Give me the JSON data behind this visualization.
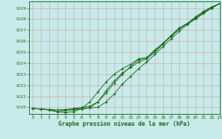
{
  "title": "Graphe pression niveau de la mer (hPa)",
  "bg_color": "#c8eaea",
  "grid_color": "#c8a8a8",
  "line_color": "#1a6b1a",
  "ylim": [
    1019.4,
    1029.6
  ],
  "xlim": [
    -0.5,
    23
  ],
  "yticks": [
    1020,
    1021,
    1022,
    1023,
    1024,
    1025,
    1026,
    1027,
    1028,
    1029
  ],
  "xtick_labels": [
    "0",
    "1",
    "2",
    "3",
    "4",
    "5",
    "6",
    "7",
    "8",
    "9",
    "10",
    "11",
    "12",
    "13",
    "14",
    "15",
    "16",
    "17",
    "18",
    "19",
    "20",
    "21",
    "22",
    "23"
  ],
  "series": [
    [
      1019.9,
      1019.85,
      1019.8,
      1019.75,
      1019.8,
      1019.85,
      1019.9,
      1019.95,
      1020.0,
      1020.5,
      1021.2,
      1022.1,
      1022.8,
      1023.5,
      1024.1,
      1024.8,
      1025.5,
      1026.2,
      1026.9,
      1027.5,
      1028.0,
      1028.5,
      1029.0,
      1029.4
    ],
    [
      1019.9,
      1019.85,
      1019.8,
      1019.75,
      1019.8,
      1019.9,
      1020.0,
      1020.1,
      1020.5,
      1021.3,
      1022.2,
      1023.0,
      1023.7,
      1024.3,
      1024.5,
      1025.2,
      1025.8,
      1026.4,
      1027.1,
      1027.6,
      1028.2,
      1028.7,
      1029.1,
      1029.4
    ],
    [
      1019.9,
      1019.85,
      1019.75,
      1019.6,
      1019.7,
      1019.75,
      1019.85,
      1019.95,
      1020.5,
      1021.5,
      1022.4,
      1023.1,
      1023.6,
      1024.1,
      1024.4,
      1025.0,
      1025.7,
      1026.5,
      1027.2,
      1027.6,
      1028.1,
      1028.6,
      1029.0,
      1029.4
    ],
    [
      1019.9,
      1019.85,
      1019.8,
      1019.6,
      1019.55,
      1019.6,
      1019.9,
      1020.5,
      1021.4,
      1022.3,
      1023.0,
      1023.5,
      1023.9,
      1024.4,
      1024.5,
      1025.1,
      1025.8,
      1026.5,
      1027.1,
      1027.6,
      1028.1,
      1028.6,
      1029.05,
      1029.4
    ]
  ]
}
